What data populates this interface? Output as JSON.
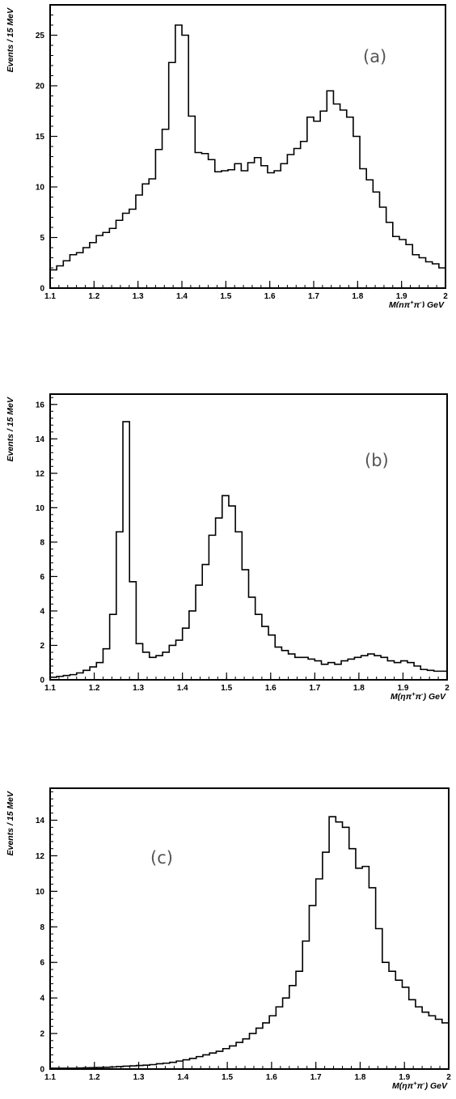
{
  "chart_data": [
    {
      "type": "bar",
      "tag": "(a)",
      "xlabel_parts": {
        "base": "M(ηπ",
        "sup1": "+",
        "mid": "π",
        "sup2": "-",
        "tail": ") GeV"
      },
      "ylabel": "Events / 15 MeV",
      "xlim": [
        1.1,
        2.0
      ],
      "ylim": [
        0,
        28
      ],
      "xticks": [
        "1.1",
        "1.2",
        "1.3",
        "1.4",
        "1.5",
        "1.6",
        "1.7",
        "1.8",
        "1.9",
        "2"
      ],
      "yticks": [
        "0",
        "5",
        "10",
        "15",
        "20",
        "25"
      ],
      "bin_start": 1.1,
      "bin_width": 0.015,
      "values": [
        1.8,
        2.2,
        2.7,
        3.3,
        3.5,
        4.0,
        4.5,
        5.2,
        5.5,
        5.9,
        6.7,
        7.4,
        7.8,
        9.2,
        10.3,
        10.8,
        13.7,
        15.7,
        22.3,
        26.0,
        25.0,
        17.0,
        13.4,
        13.3,
        12.7,
        11.5,
        11.6,
        11.7,
        12.3,
        11.6,
        12.4,
        12.9,
        12.1,
        11.4,
        11.6,
        12.3,
        13.2,
        13.8,
        14.5,
        16.9,
        16.5,
        17.5,
        19.5,
        18.2,
        17.6,
        16.9,
        15.0,
        11.8,
        10.7,
        9.5,
        8.0,
        6.5,
        5.1,
        4.8,
        4.3,
        3.3,
        3.0,
        2.6,
        2.4,
        2.0
      ]
    },
    {
      "type": "bar",
      "tag": "(b)",
      "xlabel_parts": {
        "base": "M(ηπ",
        "sup1": "+",
        "mid": "π",
        "sup2": "-",
        "tail": ") GeV"
      },
      "ylabel": "Events / 15 MeV",
      "xlim": [
        1.1,
        2.0
      ],
      "ylim": [
        0,
        16.6
      ],
      "xticks": [
        "1.1",
        "1.2",
        "1.3",
        "1.4",
        "1.5",
        "1.6",
        "1.7",
        "1.8",
        "1.9",
        "2"
      ],
      "yticks": [
        "0",
        "2",
        "4",
        "6",
        "8",
        "10",
        "12",
        "14",
        "16"
      ],
      "bin_start": 1.1,
      "bin_width": 0.015,
      "values": [
        0.15,
        0.2,
        0.25,
        0.3,
        0.4,
        0.55,
        0.75,
        1.0,
        1.8,
        3.8,
        8.6,
        15.0,
        5.7,
        2.1,
        1.6,
        1.3,
        1.4,
        1.6,
        2.0,
        2.3,
        3.0,
        4.0,
        5.5,
        6.7,
        8.4,
        9.4,
        10.7,
        10.1,
        8.6,
        6.4,
        4.8,
        3.8,
        3.1,
        2.6,
        1.9,
        1.7,
        1.5,
        1.3,
        1.3,
        1.2,
        1.1,
        0.9,
        1.0,
        0.9,
        1.1,
        1.2,
        1.3,
        1.4,
        1.5,
        1.4,
        1.3,
        1.1,
        1.0,
        1.1,
        1.0,
        0.8,
        0.6,
        0.55,
        0.5,
        0.5
      ]
    },
    {
      "type": "bar",
      "tag": "(c)",
      "xlabel_parts": {
        "base": "M(ηπ",
        "sup1": "+",
        "mid": "π",
        "sup2": "-",
        "tail": ") GeV"
      },
      "ylabel": "Events / 15 MeV",
      "xlim": [
        1.1,
        2.0
      ],
      "ylim": [
        0,
        15.8
      ],
      "xticks": [
        "1.1",
        "1.2",
        "1.3",
        "1.4",
        "1.5",
        "1.6",
        "1.7",
        "1.8",
        "1.9",
        "2"
      ],
      "yticks": [
        "0",
        "2",
        "4",
        "6",
        "8",
        "10",
        "12",
        "14"
      ],
      "bin_start": 1.1,
      "bin_width": 0.015,
      "values": [
        0.05,
        0.05,
        0.05,
        0.05,
        0.06,
        0.07,
        0.08,
        0.09,
        0.1,
        0.12,
        0.14,
        0.16,
        0.18,
        0.2,
        0.22,
        0.25,
        0.3,
        0.33,
        0.38,
        0.45,
        0.52,
        0.6,
        0.7,
        0.8,
        0.9,
        1.0,
        1.15,
        1.3,
        1.5,
        1.7,
        2.0,
        2.3,
        2.6,
        3.0,
        3.5,
        4.0,
        4.7,
        5.5,
        7.2,
        9.2,
        10.7,
        12.2,
        14.2,
        13.9,
        13.6,
        12.4,
        11.3,
        11.4,
        10.2,
        7.9,
        6.0,
        5.5,
        5.0,
        4.6,
        3.9,
        3.5,
        3.2,
        3.0,
        2.8,
        2.6
      ]
    }
  ]
}
